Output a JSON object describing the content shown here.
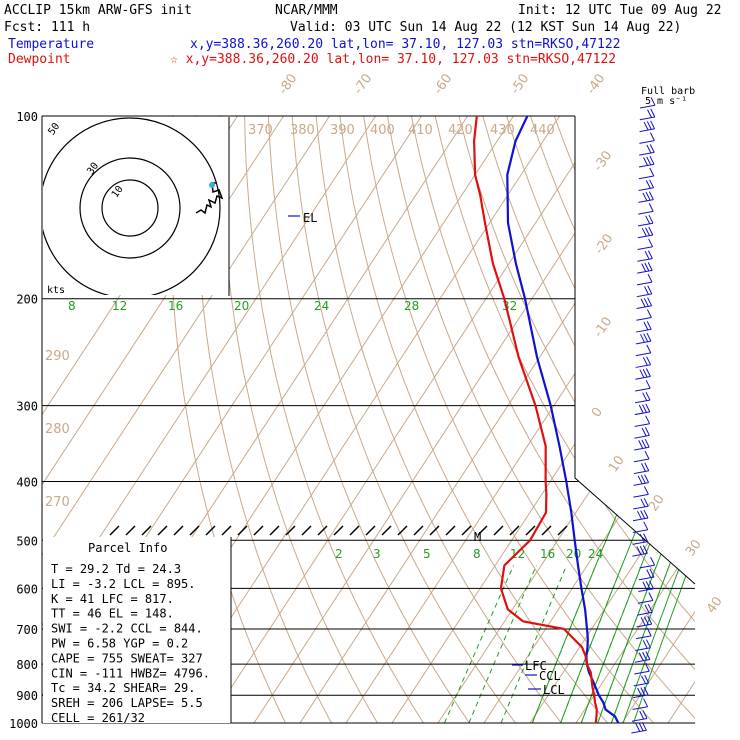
{
  "header": {
    "model": "ACCLIP 15km ARW-GFS init",
    "center": "NCAR/MMM",
    "init": "Init: 12 UTC Tue 09 Aug 22",
    "fcst": "Fcst:  111 h",
    "valid": "Valid: 03 UTC Sun 14 Aug 22 (12 KST Sun 14 Aug 22)",
    "temp_label": "Temperature",
    "temp_loc": "x,y=388.36,260.20    lat,lon= 37.10, 127.03  stn=RKSO,47122",
    "dew_label": "Dewpoint",
    "dew_loc": "☆ x,y=388.36,260.20    lat,lon= 37.10, 127.03  stn=RKSO,47122"
  },
  "barb_key": {
    "line1": "Full barb",
    "line2": "5 m s⁻¹"
  },
  "hodograph": {
    "ring_labels": [
      "50",
      "30",
      "10"
    ],
    "units": "kts"
  },
  "parcel": {
    "title": "Parcel Info",
    "rows": [
      "T   =    29.2  Td =   24.3",
      "LI  =    -3.2  LCL =  895.",
      "K   =      41  LFC =  817.",
      "TT  =      46  EL  =  148.",
      "SWI =    -2.2  CCL =  844.",
      "PW  =    6.58  YGP =   0.2",
      "CAPE =    755  SWEAT=  327",
      "CIN =    -111  HWBZ= 4796.",
      "Tc  =    34.2  SHEAR=  29.",
      "SREH =    206  LAPSE=  5.5",
      "CELL = 261/32"
    ]
  },
  "levels": {
    "el": "EL",
    "lfc": "LFC",
    "ccl": "CCL",
    "lcl": "LCL",
    "max_wind": "M"
  },
  "colors": {
    "temperature": "#1010d0",
    "dewpoint": "#e01010",
    "isotherm": "#c9a98a",
    "mixing_ratio": "#20a020",
    "barb": "#1010d0"
  },
  "chart_data": {
    "type": "line",
    "yaxis_type": "log-pressure",
    "ylim": [
      1000,
      100
    ],
    "pressure_ticks": [
      100,
      200,
      300,
      400,
      500,
      600,
      700,
      800,
      900,
      1000
    ],
    "isotherm_labels": [
      "-80",
      "-70",
      "-60",
      "-50",
      "-40",
      "-30",
      "-20",
      "-10",
      "0",
      "10",
      "20",
      "30",
      "40"
    ],
    "theta_labels": [
      "370",
      "380",
      "390",
      "400",
      "410",
      "420",
      "430",
      "440",
      "290",
      "280",
      "270"
    ],
    "mixing_ratio_upper_labels": [
      "8",
      "12",
      "16",
      "20",
      "24",
      "28",
      "32"
    ],
    "mixing_ratio_lower_labels": [
      "2",
      "3",
      "5",
      "8",
      "12",
      "16",
      "20",
      "24"
    ],
    "series": [
      {
        "name": "Temperature",
        "points": [
          [
            1000,
            29.2
          ],
          [
            975,
            27.5
          ],
          [
            950,
            24.5
          ],
          [
            925,
            23.0
          ],
          [
            900,
            21.0
          ],
          [
            875,
            19.3
          ],
          [
            850,
            17.5
          ],
          [
            825,
            15.6
          ],
          [
            800,
            14.0
          ],
          [
            775,
            12.7
          ],
          [
            750,
            11.7
          ],
          [
            725,
            10.5
          ],
          [
            700,
            9.0
          ],
          [
            650,
            5.8
          ],
          [
            600,
            2.0
          ],
          [
            550,
            -2.0
          ],
          [
            500,
            -6.3
          ],
          [
            450,
            -11.0
          ],
          [
            400,
            -16.5
          ],
          [
            350,
            -23.0
          ],
          [
            300,
            -30.7
          ],
          [
            250,
            -40.5
          ],
          [
            200,
            -51.5
          ],
          [
            175,
            -58.5
          ],
          [
            150,
            -66.0
          ],
          [
            125,
            -73.0
          ],
          [
            110,
            -76.0
          ],
          [
            100,
            -77.0
          ]
        ]
      },
      {
        "name": "Dewpoint",
        "points": [
          [
            1000,
            24.3
          ],
          [
            975,
            23.5
          ],
          [
            950,
            22.6
          ],
          [
            925,
            21.2
          ],
          [
            900,
            20.0
          ],
          [
            875,
            18.6
          ],
          [
            850,
            17.3
          ],
          [
            825,
            16.0
          ],
          [
            800,
            14.0
          ],
          [
            775,
            12.5
          ],
          [
            750,
            10.5
          ],
          [
            700,
            4.0
          ],
          [
            680,
            -6.0
          ],
          [
            650,
            -11.0
          ],
          [
            600,
            -15.5
          ],
          [
            550,
            -18.0
          ],
          [
            500,
            -16.0
          ],
          [
            450,
            -16.5
          ],
          [
            420,
            -19.0
          ],
          [
            400,
            -21.0
          ],
          [
            350,
            -26.0
          ],
          [
            300,
            -34.0
          ],
          [
            250,
            -44.5
          ],
          [
            200,
            -56.0
          ],
          [
            175,
            -63.5
          ],
          [
            150,
            -71.0
          ],
          [
            135,
            -76.0
          ],
          [
            125,
            -80.0
          ],
          [
            110,
            -85.0
          ],
          [
            100,
            -88.0
          ]
        ]
      }
    ],
    "wind_barbs": {
      "count": 54,
      "units": "m s-1"
    }
  }
}
